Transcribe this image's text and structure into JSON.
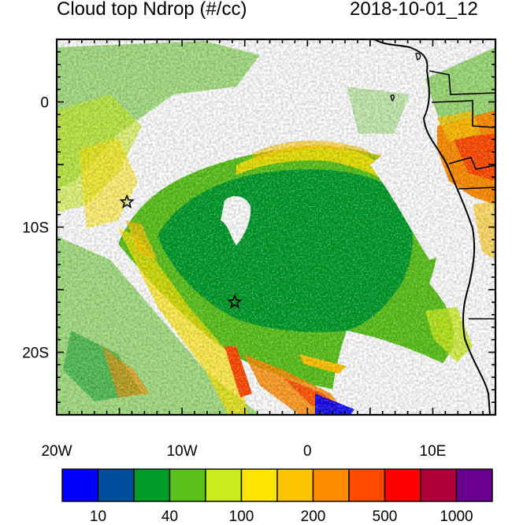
{
  "header": {
    "title": "Cloud top Ndrop (#/cc)",
    "datetime": "2018-10-01_12"
  },
  "axes": {
    "y_ticks": [
      {
        "label": "0",
        "value": 0
      },
      {
        "label": "10S",
        "value": -10
      },
      {
        "label": "20S",
        "value": -20
      }
    ],
    "x_ticks": [
      {
        "label": "20W",
        "value": -20
      },
      {
        "label": "10W",
        "value": -10
      },
      {
        "label": "0",
        "value": 0
      },
      {
        "label": "10E",
        "value": 10
      }
    ],
    "lon_range": [
      -20,
      15
    ],
    "lat_range": [
      -25,
      5
    ]
  },
  "markers": [
    {
      "name": "star-marker-1",
      "lon": -14.4,
      "lat": -8.0
    },
    {
      "name": "star-marker-2",
      "lon": -5.8,
      "lat": -16.0
    }
  ],
  "colorbar": {
    "colors": [
      "#0000ff",
      "#004e9c",
      "#009c2a",
      "#5ac21a",
      "#cbec1c",
      "#ffe600",
      "#ffc400",
      "#ff8c00",
      "#ff4a00",
      "#ff0000",
      "#b0003c",
      "#6a0090"
    ],
    "labels": [
      {
        "text": "10",
        "boundary": 1
      },
      {
        "text": "40",
        "boundary": 3
      },
      {
        "text": "100",
        "boundary": 5
      },
      {
        "text": "200",
        "boundary": 7
      },
      {
        "text": "500",
        "boundary": 9
      },
      {
        "text": "1000",
        "boundary": 11
      }
    ]
  }
}
